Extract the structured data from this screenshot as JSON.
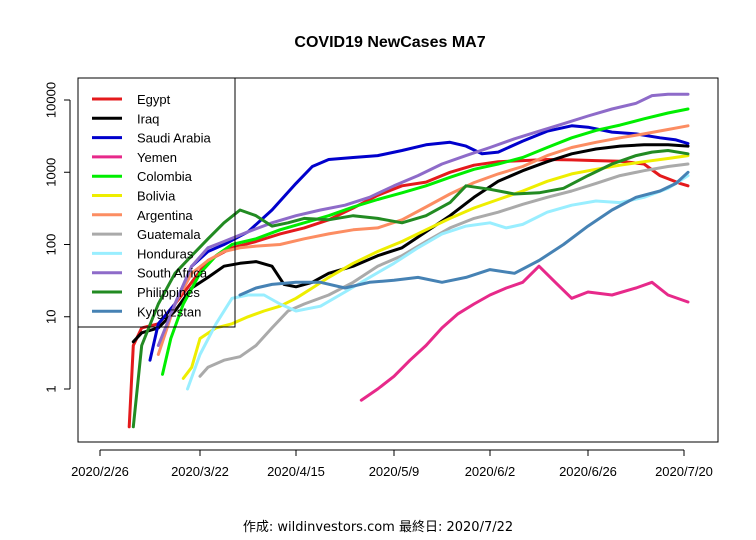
{
  "chart_data": {
    "type": "line",
    "title": "COVID19 NewCases MA7",
    "xlabel": "",
    "ylabel": "",
    "yscale": "log",
    "ylim": [
      0.2,
      15000
    ],
    "xlim": [
      -6,
      140
    ],
    "x_ticks": [
      {
        "day": 0,
        "label": "2020/2/26"
      },
      {
        "day": 24,
        "label": "2020/3/22"
      },
      {
        "day": 48,
        "label": "2020/4/15"
      },
      {
        "day": 72,
        "label": "2020/5/9"
      },
      {
        "day": 96,
        "label": "2020/6/2"
      },
      {
        "day": 120,
        "label": "2020/6/26"
      },
      {
        "day": 144,
        "label": "2020/7/20"
      }
    ],
    "y_ticks": [
      {
        "value": 1,
        "label": "1"
      },
      {
        "value": 10,
        "label": "10"
      },
      {
        "value": 100,
        "label": "100"
      },
      {
        "value": 1000,
        "label": "1000"
      },
      {
        "value": 10000,
        "label": "10000"
      }
    ],
    "legend_position": "top-left",
    "series": [
      {
        "name": "Egypt",
        "color": "#e41a1c",
        "points": [
          [
            7,
            0.3
          ],
          [
            8,
            4
          ],
          [
            10,
            7
          ],
          [
            14,
            8
          ],
          [
            18,
            15
          ],
          [
            22,
            30
          ],
          [
            26,
            60
          ],
          [
            32,
            90
          ],
          [
            38,
            110
          ],
          [
            44,
            140
          ],
          [
            50,
            170
          ],
          [
            56,
            220
          ],
          [
            62,
            320
          ],
          [
            68,
            480
          ],
          [
            74,
            650
          ],
          [
            80,
            730
          ],
          [
            86,
            1000
          ],
          [
            92,
            1250
          ],
          [
            98,
            1400
          ],
          [
            104,
            1450
          ],
          [
            110,
            1500
          ],
          [
            116,
            1480
          ],
          [
            122,
            1450
          ],
          [
            128,
            1420
          ],
          [
            134,
            1300
          ],
          [
            138,
            900
          ],
          [
            143,
            700
          ],
          [
            145,
            650
          ]
        ]
      },
      {
        "name": "Iraq",
        "color": "#000000",
        "points": [
          [
            8,
            4.5
          ],
          [
            10,
            6
          ],
          [
            14,
            7
          ],
          [
            18,
            12
          ],
          [
            22,
            25
          ],
          [
            26,
            35
          ],
          [
            30,
            50
          ],
          [
            34,
            55
          ],
          [
            38,
            58
          ],
          [
            42,
            50
          ],
          [
            45,
            28
          ],
          [
            48,
            26
          ],
          [
            52,
            30
          ],
          [
            56,
            40
          ],
          [
            62,
            50
          ],
          [
            68,
            70
          ],
          [
            74,
            90
          ],
          [
            80,
            150
          ],
          [
            86,
            250
          ],
          [
            92,
            450
          ],
          [
            98,
            750
          ],
          [
            104,
            1050
          ],
          [
            110,
            1400
          ],
          [
            116,
            1800
          ],
          [
            122,
            2100
          ],
          [
            128,
            2300
          ],
          [
            134,
            2400
          ],
          [
            140,
            2400
          ],
          [
            145,
            2300
          ]
        ]
      },
      {
        "name": "Saudi Arabia",
        "color": "#0000cc",
        "points": [
          [
            12,
            2.5
          ],
          [
            14,
            8
          ],
          [
            18,
            15
          ],
          [
            22,
            50
          ],
          [
            26,
            80
          ],
          [
            30,
            100
          ],
          [
            36,
            150
          ],
          [
            42,
            300
          ],
          [
            48,
            700
          ],
          [
            52,
            1200
          ],
          [
            56,
            1500
          ],
          [
            62,
            1600
          ],
          [
            68,
            1700
          ],
          [
            74,
            2000
          ],
          [
            80,
            2400
          ],
          [
            86,
            2600
          ],
          [
            90,
            2300
          ],
          [
            94,
            1800
          ],
          [
            98,
            1900
          ],
          [
            104,
            2700
          ],
          [
            110,
            3700
          ],
          [
            116,
            4400
          ],
          [
            120,
            4200
          ],
          [
            126,
            3600
          ],
          [
            132,
            3400
          ],
          [
            138,
            3000
          ],
          [
            142,
            2800
          ],
          [
            145,
            2500
          ]
        ]
      },
      {
        "name": "Yemen",
        "color": "#e7298a",
        "points": [
          [
            64,
            0.7
          ],
          [
            68,
            1
          ],
          [
            72,
            1.5
          ],
          [
            76,
            2.5
          ],
          [
            80,
            4
          ],
          [
            84,
            7
          ],
          [
            88,
            11
          ],
          [
            92,
            15
          ],
          [
            96,
            20
          ],
          [
            100,
            25
          ],
          [
            104,
            30
          ],
          [
            108,
            50
          ],
          [
            112,
            30
          ],
          [
            116,
            18
          ],
          [
            120,
            22
          ],
          [
            126,
            20
          ],
          [
            132,
            25
          ],
          [
            136,
            30
          ],
          [
            140,
            20
          ],
          [
            145,
            16
          ]
        ]
      },
      {
        "name": "Colombia",
        "color": "#00ee00",
        "points": [
          [
            15,
            1.6
          ],
          [
            17,
            5
          ],
          [
            20,
            15
          ],
          [
            24,
            40
          ],
          [
            28,
            70
          ],
          [
            32,
            100
          ],
          [
            38,
            120
          ],
          [
            44,
            160
          ],
          [
            50,
            200
          ],
          [
            56,
            250
          ],
          [
            62,
            330
          ],
          [
            68,
            420
          ],
          [
            74,
            520
          ],
          [
            80,
            650
          ],
          [
            86,
            850
          ],
          [
            92,
            1100
          ],
          [
            98,
            1300
          ],
          [
            104,
            1600
          ],
          [
            110,
            2200
          ],
          [
            116,
            3000
          ],
          [
            122,
            3800
          ],
          [
            128,
            4500
          ],
          [
            134,
            5500
          ],
          [
            140,
            6600
          ],
          [
            145,
            7500
          ]
        ]
      },
      {
        "name": "Bolivia",
        "color": "#eeee00",
        "points": [
          [
            20,
            1.4
          ],
          [
            22,
            2
          ],
          [
            24,
            5
          ],
          [
            28,
            7
          ],
          [
            32,
            8
          ],
          [
            36,
            10
          ],
          [
            40,
            12
          ],
          [
            44,
            14
          ],
          [
            48,
            18
          ],
          [
            52,
            25
          ],
          [
            56,
            35
          ],
          [
            62,
            55
          ],
          [
            68,
            80
          ],
          [
            74,
            110
          ],
          [
            80,
            160
          ],
          [
            86,
            230
          ],
          [
            92,
            320
          ],
          [
            98,
            420
          ],
          [
            104,
            550
          ],
          [
            110,
            750
          ],
          [
            116,
            950
          ],
          [
            122,
            1100
          ],
          [
            128,
            1250
          ],
          [
            134,
            1400
          ],
          [
            140,
            1550
          ],
          [
            145,
            1700
          ]
        ]
      },
      {
        "name": "Argentina",
        "color": "#fc8d62",
        "points": [
          [
            14,
            3
          ],
          [
            18,
            15
          ],
          [
            22,
            40
          ],
          [
            26,
            60
          ],
          [
            30,
            80
          ],
          [
            34,
            90
          ],
          [
            38,
            95
          ],
          [
            44,
            100
          ],
          [
            50,
            120
          ],
          [
            56,
            140
          ],
          [
            62,
            160
          ],
          [
            68,
            170
          ],
          [
            74,
            220
          ],
          [
            80,
            330
          ],
          [
            86,
            500
          ],
          [
            92,
            720
          ],
          [
            98,
            950
          ],
          [
            104,
            1200
          ],
          [
            110,
            1700
          ],
          [
            116,
            2200
          ],
          [
            122,
            2600
          ],
          [
            128,
            3000
          ],
          [
            134,
            3400
          ],
          [
            140,
            3900
          ],
          [
            145,
            4400
          ]
        ]
      },
      {
        "name": "Guatemala",
        "color": "#aaaaaa",
        "points": [
          [
            24,
            1.5
          ],
          [
            26,
            2
          ],
          [
            30,
            2.5
          ],
          [
            34,
            2.8
          ],
          [
            38,
            4
          ],
          [
            42,
            7
          ],
          [
            46,
            12
          ],
          [
            50,
            15
          ],
          [
            56,
            20
          ],
          [
            62,
            30
          ],
          [
            68,
            50
          ],
          [
            74,
            70
          ],
          [
            80,
            110
          ],
          [
            86,
            170
          ],
          [
            92,
            230
          ],
          [
            98,
            280
          ],
          [
            104,
            360
          ],
          [
            110,
            450
          ],
          [
            116,
            550
          ],
          [
            122,
            700
          ],
          [
            128,
            900
          ],
          [
            134,
            1050
          ],
          [
            140,
            1200
          ],
          [
            145,
            1300
          ]
        ]
      },
      {
        "name": "Honduras",
        "color": "#99eeff",
        "points": [
          [
            21,
            1
          ],
          [
            24,
            3
          ],
          [
            28,
            8
          ],
          [
            32,
            18
          ],
          [
            36,
            20
          ],
          [
            40,
            20
          ],
          [
            44,
            15
          ],
          [
            48,
            12
          ],
          [
            54,
            14
          ],
          [
            60,
            22
          ],
          [
            66,
            35
          ],
          [
            72,
            55
          ],
          [
            78,
            90
          ],
          [
            84,
            140
          ],
          [
            90,
            180
          ],
          [
            96,
            200
          ],
          [
            100,
            170
          ],
          [
            104,
            190
          ],
          [
            110,
            280
          ],
          [
            116,
            350
          ],
          [
            122,
            400
          ],
          [
            128,
            380
          ],
          [
            134,
            450
          ],
          [
            140,
            600
          ],
          [
            145,
            900
          ]
        ]
      },
      {
        "name": "South Africa",
        "color": "#8e6bc9",
        "points": [
          [
            14,
            4
          ],
          [
            18,
            15
          ],
          [
            22,
            50
          ],
          [
            26,
            90
          ],
          [
            30,
            110
          ],
          [
            36,
            150
          ],
          [
            42,
            200
          ],
          [
            48,
            250
          ],
          [
            54,
            300
          ],
          [
            60,
            350
          ],
          [
            66,
            450
          ],
          [
            72,
            650
          ],
          [
            78,
            900
          ],
          [
            84,
            1300
          ],
          [
            90,
            1700
          ],
          [
            96,
            2200
          ],
          [
            102,
            2900
          ],
          [
            108,
            3700
          ],
          [
            114,
            4700
          ],
          [
            120,
            6000
          ],
          [
            126,
            7500
          ],
          [
            132,
            9000
          ],
          [
            136,
            11500
          ],
          [
            140,
            12000
          ],
          [
            145,
            12000
          ]
        ]
      },
      {
        "name": "Philippines",
        "color": "#228b22",
        "points": [
          [
            8,
            0.3
          ],
          [
            10,
            4
          ],
          [
            14,
            15
          ],
          [
            18,
            40
          ],
          [
            22,
            70
          ],
          [
            26,
            120
          ],
          [
            30,
            200
          ],
          [
            34,
            300
          ],
          [
            38,
            250
          ],
          [
            42,
            180
          ],
          [
            46,
            200
          ],
          [
            50,
            230
          ],
          [
            56,
            220
          ],
          [
            62,
            250
          ],
          [
            68,
            230
          ],
          [
            74,
            200
          ],
          [
            80,
            250
          ],
          [
            86,
            380
          ],
          [
            90,
            650
          ],
          [
            96,
            580
          ],
          [
            102,
            500
          ],
          [
            108,
            520
          ],
          [
            114,
            600
          ],
          [
            120,
            900
          ],
          [
            126,
            1300
          ],
          [
            132,
            1700
          ],
          [
            136,
            1900
          ],
          [
            140,
            2000
          ],
          [
            145,
            1800
          ]
        ]
      },
      {
        "name": "Kyrgyzstan",
        "color": "#4682b4",
        "points": [
          [
            34,
            20
          ],
          [
            38,
            25
          ],
          [
            42,
            28
          ],
          [
            48,
            30
          ],
          [
            54,
            30
          ],
          [
            60,
            25
          ],
          [
            66,
            30
          ],
          [
            72,
            32
          ],
          [
            78,
            35
          ],
          [
            84,
            30
          ],
          [
            90,
            35
          ],
          [
            96,
            45
          ],
          [
            102,
            40
          ],
          [
            108,
            60
          ],
          [
            114,
            100
          ],
          [
            120,
            180
          ],
          [
            126,
            300
          ],
          [
            132,
            450
          ],
          [
            138,
            550
          ],
          [
            142,
            700
          ],
          [
            145,
            1000
          ]
        ]
      }
    ]
  },
  "footer": {
    "text": "作成: wildinvestors.com 最終日: 2020/7/22"
  }
}
